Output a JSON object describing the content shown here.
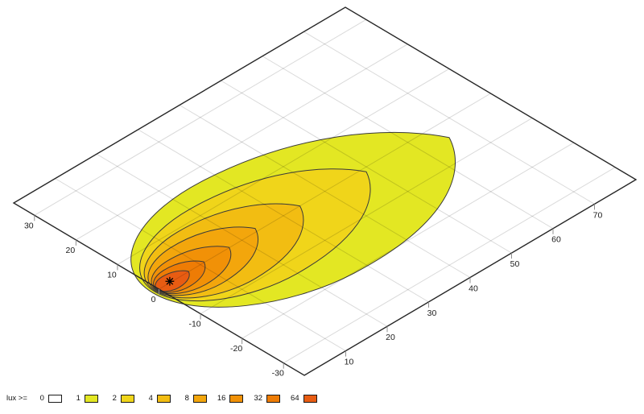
{
  "chart_data": {
    "type": "contour",
    "description": "isolux contour plot on oblique ground plane, nested illuminance regions radiating from a lamp marker",
    "x_axis": {
      "range": [
        0,
        80
      ],
      "tick_labels": [
        10,
        20,
        30,
        40,
        50,
        60,
        70
      ]
    },
    "y_axis": {
      "range": [
        -35,
        35
      ],
      "tick_labels": [
        30,
        20,
        10,
        0,
        -10,
        -20,
        -30
      ]
    },
    "grid": "on",
    "legend": {
      "prefix": "lux >=",
      "position": "bottom-left",
      "items": [
        {
          "level": "0",
          "color": "#ffffff"
        },
        {
          "level": "1",
          "color": "#e3e723"
        },
        {
          "level": "2",
          "color": "#f0d51a"
        },
        {
          "level": "4",
          "color": "#f2bd12"
        },
        {
          "level": "8",
          "color": "#f3a60c"
        },
        {
          "level": "16",
          "color": "#f19107"
        },
        {
          "level": "32",
          "color": "#ee7c05"
        },
        {
          "level": "64",
          "color": "#e85c12"
        }
      ]
    },
    "contours": [
      {
        "lux": 1,
        "color": "#e3e723",
        "u_min": -1.5,
        "u_max": 66,
        "half_width": 18.5,
        "tilt": -4
      },
      {
        "lux": 2,
        "color": "#f0d51a",
        "u_min": -1.0,
        "u_max": 49,
        "half_width": 13.0,
        "tilt": -1
      },
      {
        "lux": 4,
        "color": "#f2bd12",
        "u_min": -0.8,
        "u_max": 34,
        "half_width": 9.4,
        "tilt": 0
      },
      {
        "lux": 8,
        "color": "#f3a60c",
        "u_min": -0.6,
        "u_max": 24,
        "half_width": 6.7,
        "tilt": 0.8
      },
      {
        "lux": 16,
        "color": "#f19107",
        "u_min": -0.45,
        "u_max": 17,
        "half_width": 4.7,
        "tilt": 0.1
      },
      {
        "lux": 32,
        "color": "#ee7c05",
        "u_min": -0.35,
        "u_max": 11,
        "half_width": 3.2,
        "tilt": 0.2
      },
      {
        "lux": 64,
        "color": "#e85c12",
        "u_min": -0.25,
        "u_max": 7.2,
        "half_width": 2.1,
        "tilt": 0.1
      }
    ],
    "marker": {
      "symbol": "asterisk",
      "u": 2.9,
      "v": 0.3,
      "color": "#000000"
    },
    "style": {
      "outline_color": "#3a3a3a",
      "border_color": "#262626",
      "tick_color": "#909090",
      "grid_color": "#000000",
      "grid_opacity": 0.15,
      "background": "#ffffff"
    }
  }
}
